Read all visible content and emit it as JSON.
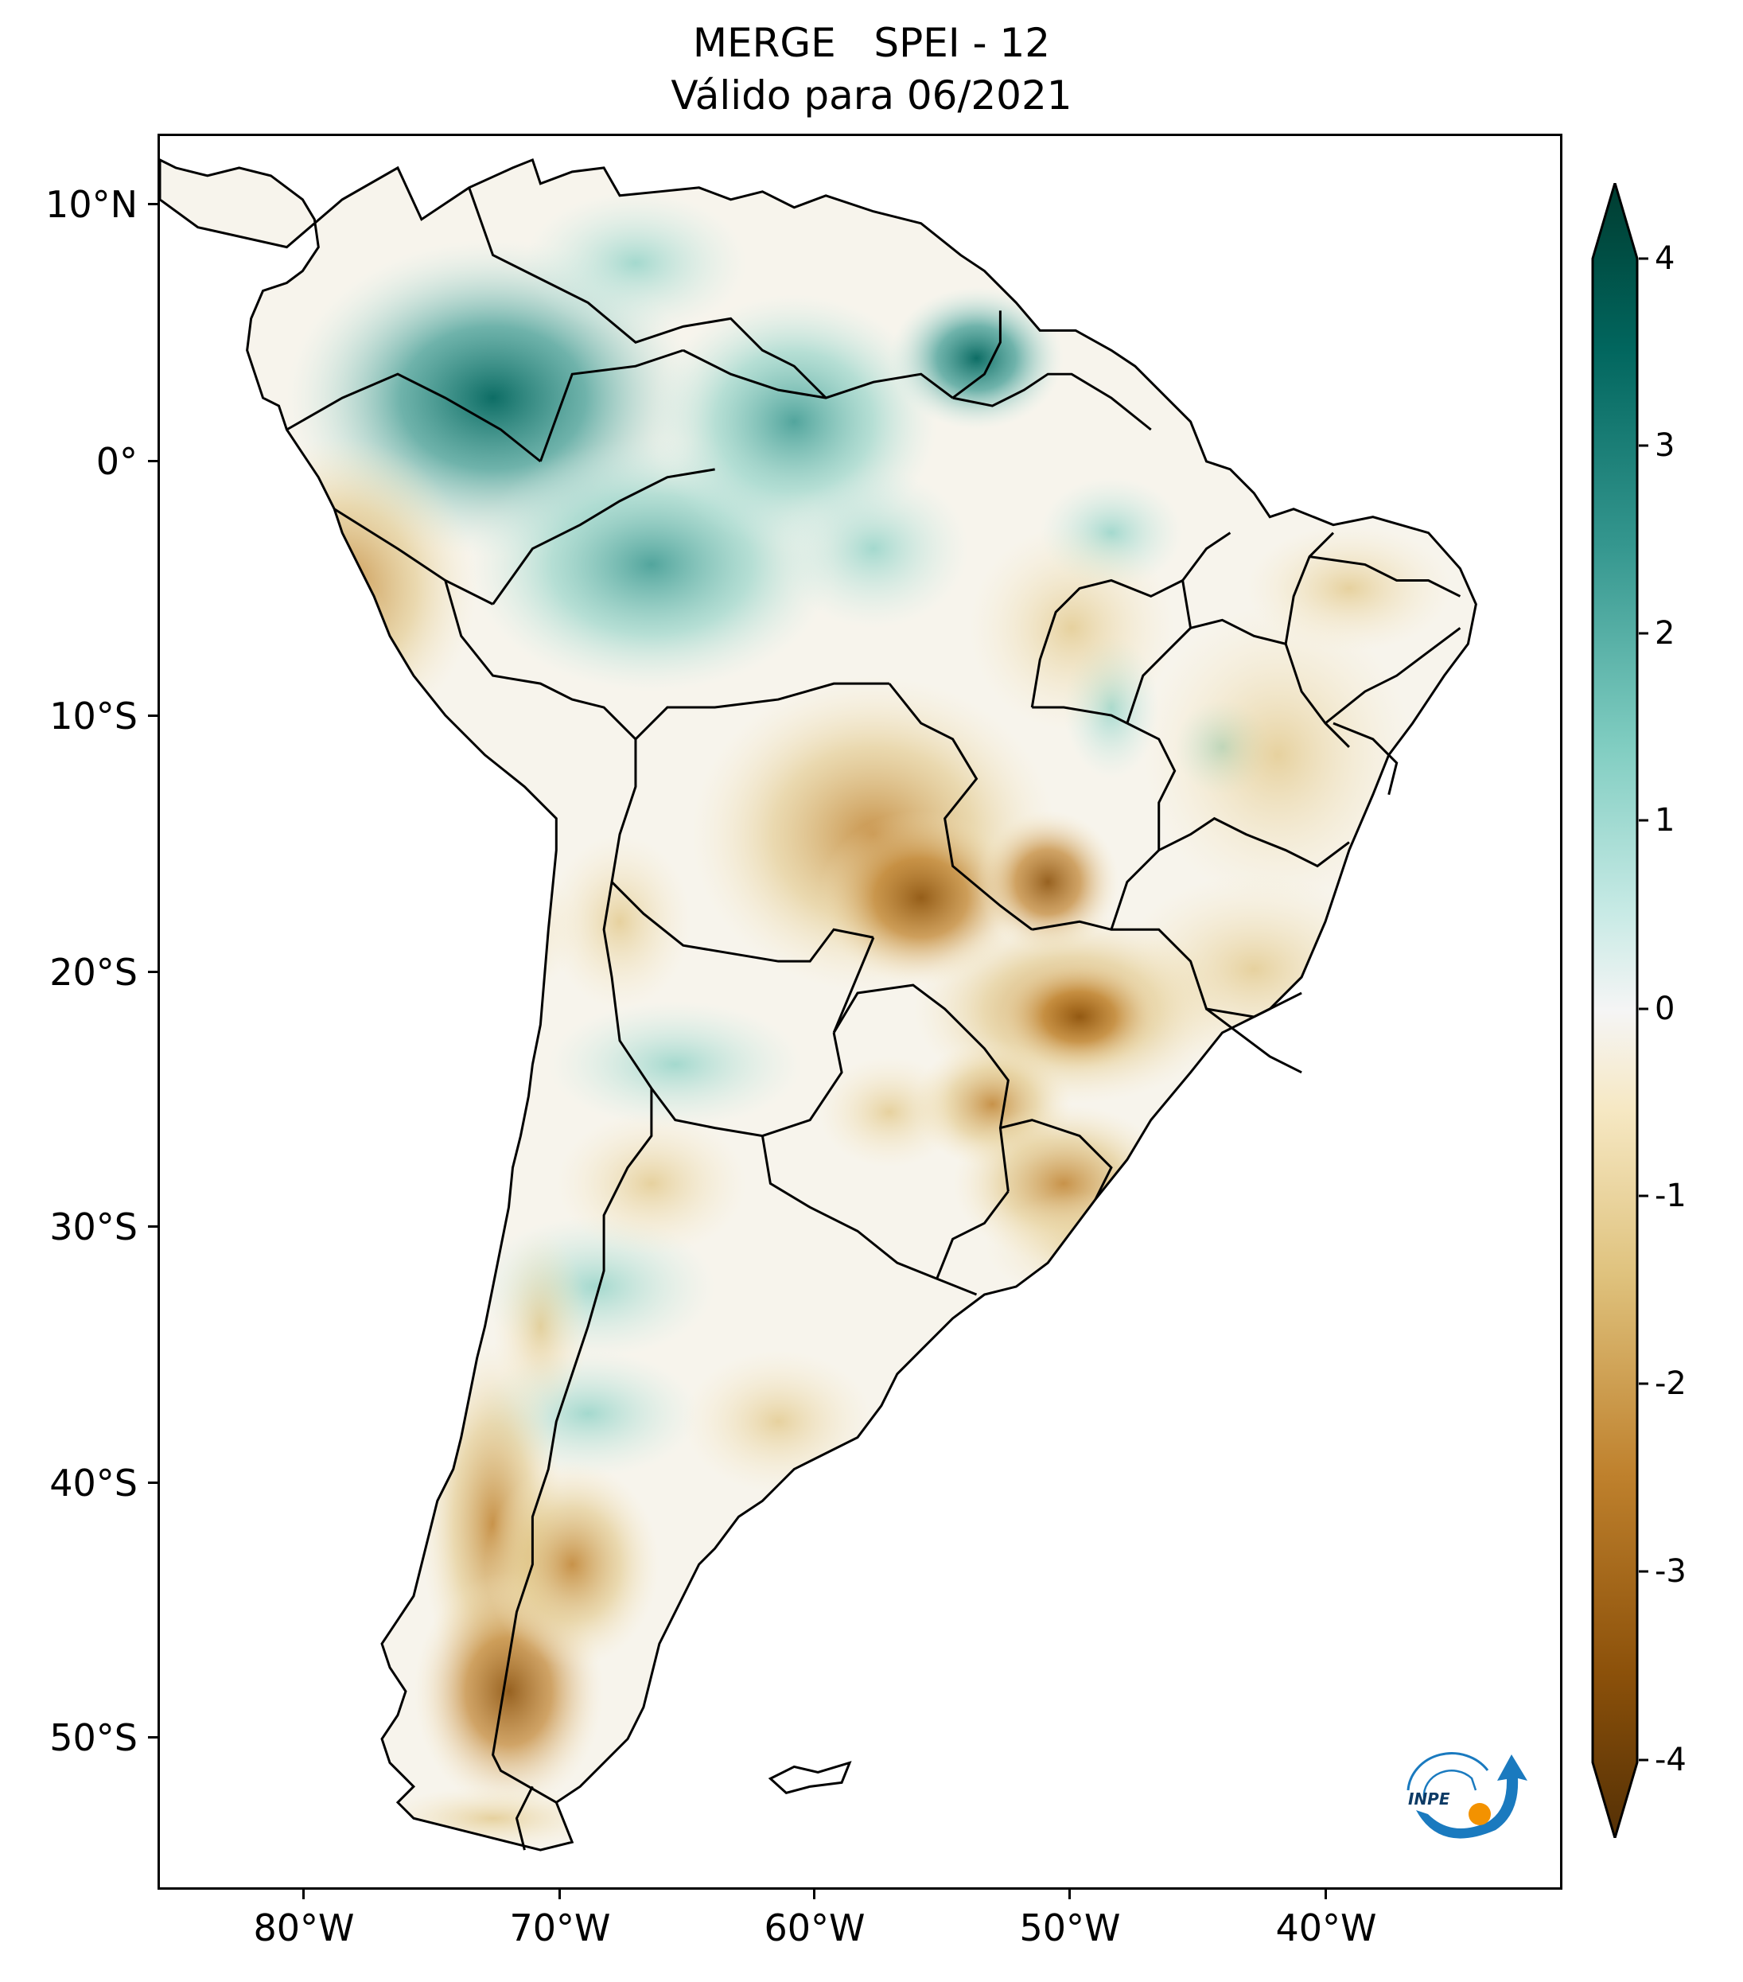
{
  "title": {
    "line1": "MERGE   SPEI - 12",
    "line2": "Válido para 06/2021"
  },
  "axes": {
    "lat_labels": [
      "10°N",
      "0°",
      "10°S",
      "20°S",
      "30°S",
      "40°S",
      "50°S"
    ],
    "lat_values": [
      10,
      0,
      -10,
      -20,
      -30,
      -40,
      -50
    ],
    "lon_labels": [
      "80°W",
      "70°W",
      "60°W",
      "50°W",
      "40°W"
    ],
    "lon_values": [
      -80,
      -70,
      -60,
      -50,
      -40
    ],
    "lon_range": [
      -85,
      -30
    ],
    "lat_range": [
      -56.5,
      13
    ]
  },
  "colorbar": {
    "labels": [
      "4",
      "3",
      "2",
      "1",
      "0",
      "-1",
      "-2",
      "-3",
      "-4"
    ],
    "values": [
      4,
      3,
      2,
      1,
      0,
      -1,
      -2,
      -3,
      -4
    ],
    "range": [
      -4,
      4
    ],
    "extend": "both",
    "colormap": "BrBG",
    "colors": {
      "wet_extreme": "#003c30",
      "wet_strong": "#01665e",
      "wet_moderate": "#35978f",
      "wet_mild": "#80cdc1",
      "wet_slight": "#c7eae5",
      "neutral": "#f5f5f5",
      "dry_slight": "#f6e8c3",
      "dry_mild": "#dfc27d",
      "dry_moderate": "#bf812d",
      "dry_strong": "#8c510a",
      "dry_extreme": "#543005"
    }
  },
  "logo": {
    "text": "INPE",
    "colors": {
      "arc": "#1a7abf",
      "dot": "#f39200"
    }
  }
}
